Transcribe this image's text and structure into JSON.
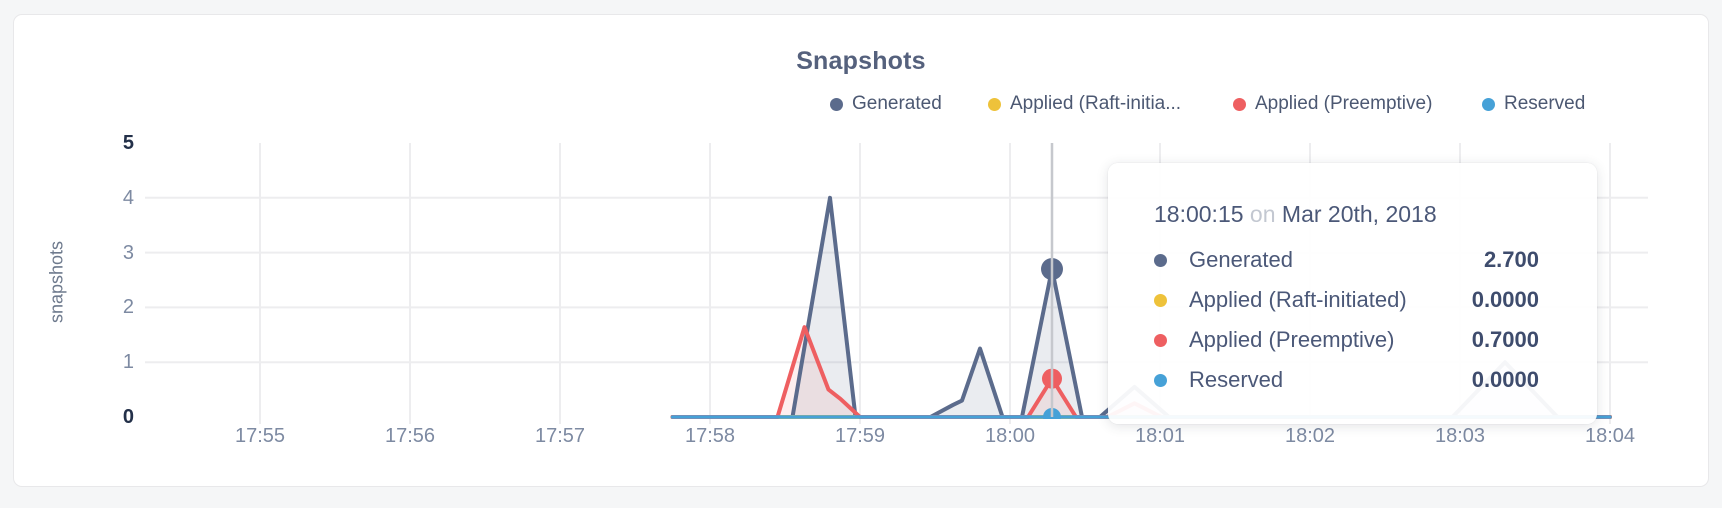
{
  "card": {
    "background": "#ffffff",
    "border_color": "#e8e8ea"
  },
  "chart_data": {
    "type": "area",
    "title": "Snapshots",
    "xlabel": "",
    "ylabel": "snapshots",
    "x_ticks": [
      "17:55",
      "17:56",
      "17:57",
      "17:58",
      "17:59",
      "18:00",
      "18:01",
      "18:02",
      "18:03",
      "18:04"
    ],
    "y_ticks": [
      "5",
      "4",
      "3",
      "2",
      "1",
      "0"
    ],
    "y_ticks_emphasized": [
      "5",
      "0"
    ],
    "ylim": [
      0,
      5
    ],
    "grid": true,
    "legend_position": "top-right",
    "x_points_unit": "minutes after 17:55",
    "series": [
      {
        "name": "Generated",
        "color": "#5b6b8c",
        "fill": "rgba(91,107,140,0.13)",
        "line_width": 4,
        "points": [
          [
            2.75,
            0
          ],
          [
            3.55,
            0
          ],
          [
            3.8,
            4.0
          ],
          [
            3.97,
            0
          ],
          [
            4.47,
            0
          ],
          [
            4.62,
            0.22
          ],
          [
            4.68,
            0.3
          ],
          [
            4.8,
            1.25
          ],
          [
            4.95,
            0
          ],
          [
            5.08,
            0
          ],
          [
            5.28,
            2.7
          ],
          [
            5.48,
            0
          ],
          [
            5.6,
            0
          ],
          [
            5.83,
            0.55
          ],
          [
            6.06,
            0
          ],
          [
            7.95,
            0
          ],
          [
            8.3,
            1.0
          ],
          [
            8.65,
            0
          ],
          [
            9.0,
            0
          ]
        ]
      },
      {
        "name": "Applied (Raft-initiated)",
        "color": "#eec23a",
        "fill": null,
        "line_width": 4,
        "points": [
          [
            2.75,
            0
          ],
          [
            9.0,
            0
          ]
        ]
      },
      {
        "name": "Applied (Preemptive)",
        "color": "#ee5f61",
        "fill": "rgba(238,95,97,0.10)",
        "line_width": 4,
        "points": [
          [
            2.75,
            0
          ],
          [
            3.45,
            0
          ],
          [
            3.63,
            1.64
          ],
          [
            3.79,
            0.5
          ],
          [
            3.87,
            0.33
          ],
          [
            4.0,
            0
          ],
          [
            5.12,
            0
          ],
          [
            5.28,
            0.7
          ],
          [
            5.44,
            0
          ],
          [
            5.65,
            0
          ],
          [
            5.83,
            0.25
          ],
          [
            6.01,
            0
          ],
          [
            9.0,
            0
          ]
        ]
      },
      {
        "name": "Reserved",
        "color": "#46a1d7",
        "fill": null,
        "line_width": 3.5,
        "points": [
          [
            2.75,
            0
          ],
          [
            9.0,
            0
          ]
        ]
      }
    ],
    "hover": {
      "x": 5.28,
      "time": "18:00:15",
      "crosshair_color": "#c6c8cd",
      "markers": [
        {
          "series": "Generated",
          "value": 2.7,
          "color": "#5b6b8c",
          "r": 11
        },
        {
          "series": "Applied (Preemptive)",
          "value": 0.7,
          "color": "#ee5f61",
          "r": 10
        },
        {
          "series": "Reserved",
          "value": 0.0,
          "color": "#46a1d7",
          "r": 9
        }
      ]
    },
    "grid_color": "#ededef"
  },
  "legend": {
    "items": [
      {
        "label": "Generated",
        "color": "#5b6b8c"
      },
      {
        "label": "Applied (Raft-initia...",
        "color": "#eec23a"
      },
      {
        "label": "Applied (Preemptive)",
        "color": "#ee5f61"
      },
      {
        "label": "Reserved",
        "color": "#46a1d7"
      }
    ]
  },
  "tooltip": {
    "time": "18:00:15",
    "connector": "on",
    "date": "Mar 20th, 2018",
    "rows": [
      {
        "label": "Generated",
        "color": "#5b6b8c",
        "value": "2.700"
      },
      {
        "label": "Applied (Raft-initiated)",
        "color": "#eec23a",
        "value": "0.0000"
      },
      {
        "label": "Applied (Preemptive)",
        "color": "#ee5f61",
        "value": "0.7000"
      },
      {
        "label": "Reserved",
        "color": "#46a1d7",
        "value": "0.0000"
      }
    ]
  }
}
